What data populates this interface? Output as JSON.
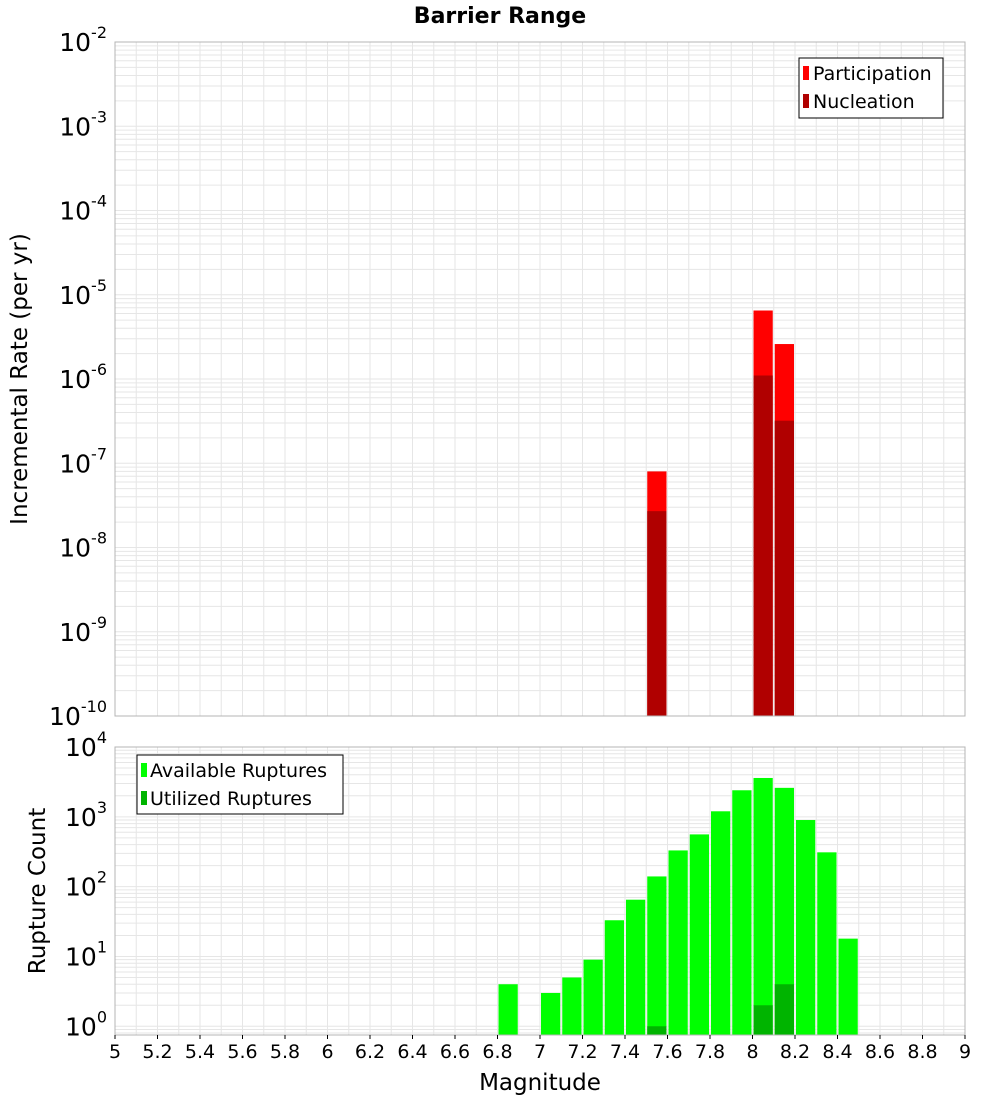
{
  "colors": {
    "participation": "#ff0000",
    "nucleation": "#b00000",
    "available": "#00ff00",
    "utilized": "#00b400",
    "grid": "#e6e6e6",
    "frame": "#b4b4b4"
  },
  "chart_data": [
    {
      "type": "bar",
      "title": "Barrier Range",
      "xlabel": "",
      "ylabel": "Incremental Rate (per yr)",
      "yscale": "log",
      "xlim": [
        5,
        9
      ],
      "ylim": [
        1e-10,
        0.01
      ],
      "grid": true,
      "legend_position": "top-right",
      "y_ticks": [
        {
          "base": "10",
          "exp": "-10"
        },
        {
          "base": "10",
          "exp": "-9"
        },
        {
          "base": "10",
          "exp": "-8"
        },
        {
          "base": "10",
          "exp": "-7"
        },
        {
          "base": "10",
          "exp": "-6"
        },
        {
          "base": "10",
          "exp": "-5"
        },
        {
          "base": "10",
          "exp": "-4"
        },
        {
          "base": "10",
          "exp": "-3"
        },
        {
          "base": "10",
          "exp": "-2"
        }
      ],
      "series": [
        {
          "name": "Participation",
          "color_key": "participation",
          "x": [
            7.55,
            8.05,
            8.15
          ],
          "values": [
            8e-08,
            6.5e-06,
            2.6e-06
          ]
        },
        {
          "name": "Nucleation",
          "color_key": "nucleation",
          "x": [
            7.55,
            8.05,
            8.15
          ],
          "values": [
            2.7e-08,
            1.1e-06,
            3.2e-07
          ]
        }
      ]
    },
    {
      "type": "bar",
      "xlabel": "Magnitude",
      "ylabel": "Rupture Count",
      "yscale": "log",
      "xlim": [
        5,
        9
      ],
      "ylim": [
        0.75,
        10000
      ],
      "grid": true,
      "legend_position": "top-left",
      "x_ticks": [
        "5",
        "5.2",
        "5.4",
        "5.6",
        "5.8",
        "6",
        "6.2",
        "6.4",
        "6.6",
        "6.8",
        "7",
        "7.2",
        "7.4",
        "7.6",
        "7.8",
        "8",
        "8.2",
        "8.4",
        "8.6",
        "8.8",
        "9"
      ],
      "y_ticks": [
        {
          "base": "10",
          "exp": "0"
        },
        {
          "base": "10",
          "exp": "1"
        },
        {
          "base": "10",
          "exp": "2"
        },
        {
          "base": "10",
          "exp": "3"
        },
        {
          "base": "10",
          "exp": "4"
        }
      ],
      "series": [
        {
          "name": "Available Ruptures",
          "color_key": "available",
          "x": [
            6.85,
            7.05,
            7.15,
            7.25,
            7.35,
            7.45,
            7.55,
            7.65,
            7.75,
            7.85,
            7.95,
            8.05,
            8.15,
            8.25,
            8.35,
            8.45
          ],
          "values": [
            4,
            3,
            5,
            9,
            33,
            65,
            140,
            330,
            560,
            1200,
            2400,
            3600,
            2600,
            900,
            310,
            18
          ]
        },
        {
          "name": "Utilized Ruptures",
          "color_key": "utilized",
          "x": [
            7.55,
            8.05,
            8.15
          ],
          "values": [
            1,
            2,
            4
          ]
        }
      ]
    }
  ]
}
